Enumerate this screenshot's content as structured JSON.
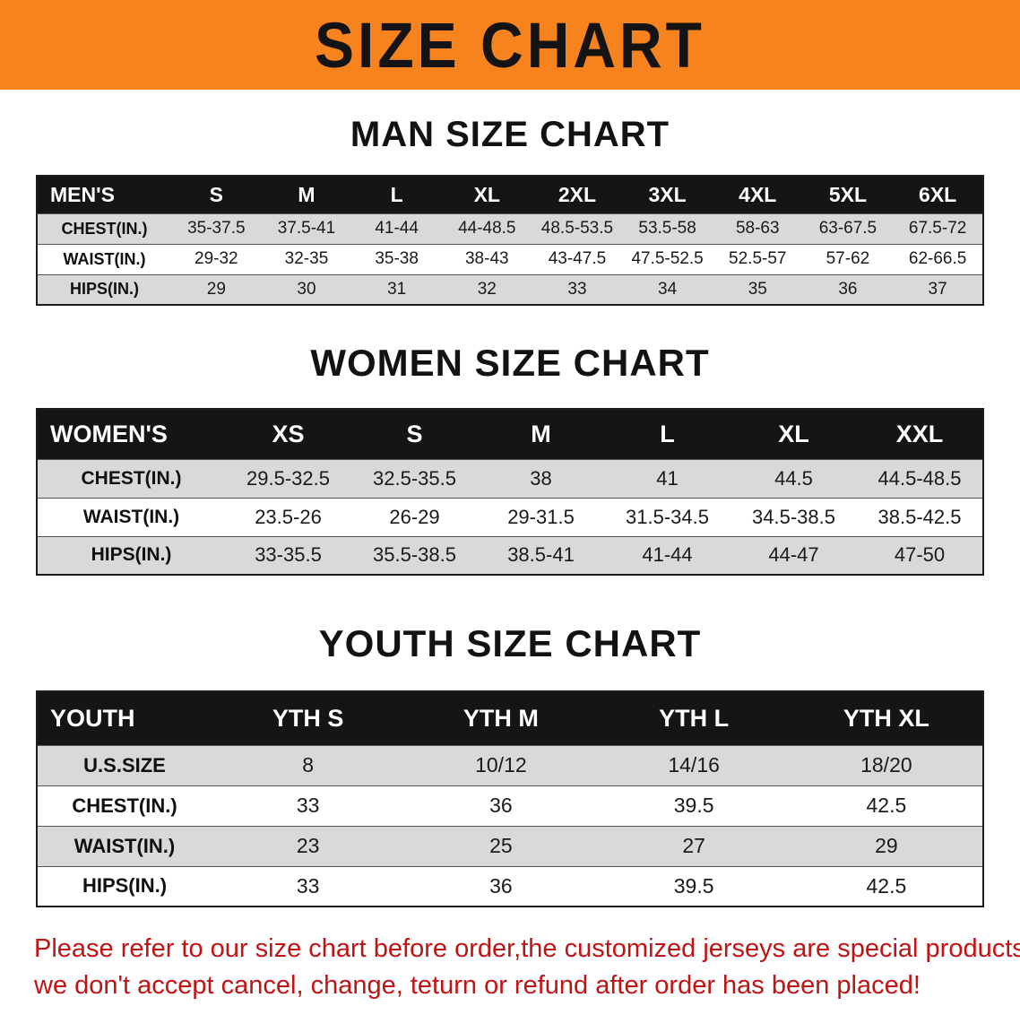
{
  "banner": {
    "title": "SIZE CHART",
    "bg_color": "#f6831d"
  },
  "sections": [
    {
      "heading": "MAN SIZE CHART",
      "table": {
        "header": [
          "MEN'S",
          "S",
          "M",
          "L",
          "XL",
          "2XL",
          "3XL",
          "4XL",
          "5XL",
          "6XL"
        ],
        "rows": [
          [
            "CHEST(IN.)",
            "35-37.5",
            "37.5-41",
            "41-44",
            "44-48.5",
            "48.5-53.5",
            "53.5-58",
            "58-63",
            "63-67.5",
            "67.5-72"
          ],
          [
            "WAIST(IN.)",
            "29-32",
            "32-35",
            "35-38",
            "38-43",
            "43-47.5",
            "47.5-52.5",
            "52.5-57",
            "57-62",
            "62-66.5"
          ],
          [
            "HIPS(IN.)",
            "29",
            "30",
            "31",
            "32",
            "33",
            "34",
            "35",
            "36",
            "37"
          ]
        ]
      }
    },
    {
      "heading": "WOMEN SIZE CHART",
      "table": {
        "header": [
          "WOMEN'S",
          "XS",
          "S",
          "M",
          "L",
          "XL",
          "XXL"
        ],
        "rows": [
          [
            "CHEST(IN.)",
            "29.5-32.5",
            "32.5-35.5",
            "38",
            "41",
            "44.5",
            "44.5-48.5"
          ],
          [
            "WAIST(IN.)",
            "23.5-26",
            "26-29",
            "29-31.5",
            "31.5-34.5",
            "34.5-38.5",
            "38.5-42.5"
          ],
          [
            "HIPS(IN.)",
            "33-35.5",
            "35.5-38.5",
            "38.5-41",
            "41-44",
            "44-47",
            "47-50"
          ]
        ]
      }
    },
    {
      "heading": "YOUTH SIZE CHART",
      "table": {
        "header": [
          "YOUTH",
          "YTH S",
          "YTH M",
          "YTH L",
          "YTH XL"
        ],
        "rows": [
          [
            "U.S.SIZE",
            "8",
            "10/12",
            "14/16",
            "18/20"
          ],
          [
            "CHEST(IN.)",
            "33",
            "36",
            "39.5",
            "42.5"
          ],
          [
            "WAIST(IN.)",
            "23",
            "25",
            "27",
            "29"
          ],
          [
            "HIPS(IN.)",
            "33",
            "36",
            "39.5",
            "42.5"
          ]
        ]
      }
    }
  ],
  "footer": {
    "line1": "Please refer to our size chart before order,the customized jerseys are special products,",
    "line2": "we don't accept cancel, change, teturn or refund after order has been placed!",
    "text_color": "#c01414"
  }
}
